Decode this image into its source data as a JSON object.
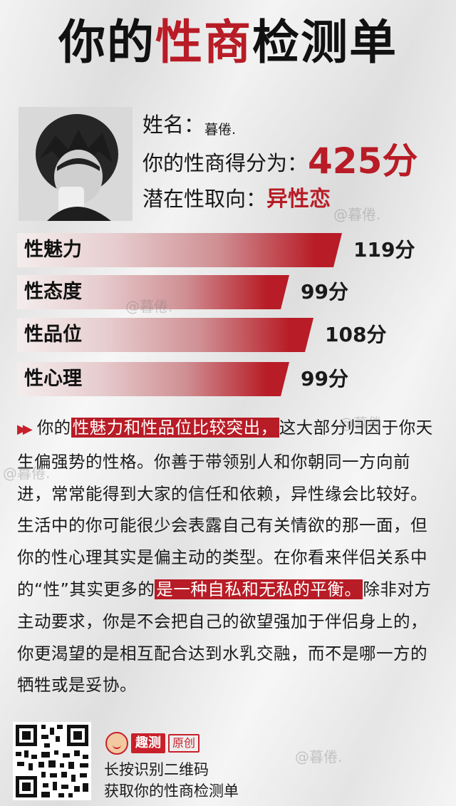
{
  "title": {
    "part1": "你的",
    "highlight": "性商",
    "part2": "检测单"
  },
  "profile": {
    "name_label": "姓名：",
    "name": "暮倦.",
    "score_label": "你的性商得分为：",
    "score": "425分",
    "orientation_label": "潜在性取向：",
    "orientation": "异性恋"
  },
  "bars": [
    {
      "label": "性魅力",
      "value": "119分",
      "score": 119
    },
    {
      "label": "性态度",
      "value": "99分",
      "score": 99
    },
    {
      "label": "性品位",
      "value": "108分",
      "score": 108
    },
    {
      "label": "性心理",
      "value": "99分",
      "score": 99
    }
  ],
  "analysis": {
    "arrow": "▶▶",
    "t1": "你的",
    "h1": "性魅力和性品位比较突出，",
    "t2": "这大部分归因于你天生偏强势的性格。你善于带领别人和你朝同一方向前进，常常能得到大家的信任和依赖，异性缘会比较好。生活中的你可能很少会表露自己有关情欲的那一面，但你的性心理其实是偏主动的类型。在你看来伴侣关系中的“性”其实更多的",
    "h2": "是一种自私和无私的平衡。",
    "t3": "除非对方主动要求，你是不会把自己的欲望强加于伴侣身上的，你更渴望的是相互配合达到水乳交融，而不是哪一方的牺牲或是妥协。"
  },
  "watermark": "@暮倦.",
  "footer": {
    "brand": "趣测",
    "original": "原创",
    "line1": "长按识别二维码",
    "line2": "获取你的性商检测单"
  },
  "colors": {
    "accent": "#b81c26",
    "text": "#1a1a1a"
  },
  "icons": {
    "arrow": "double-right-arrow-icon",
    "qr": "qr-code-icon",
    "mascot": "mascot-icon",
    "avatar": "avatar-image"
  }
}
